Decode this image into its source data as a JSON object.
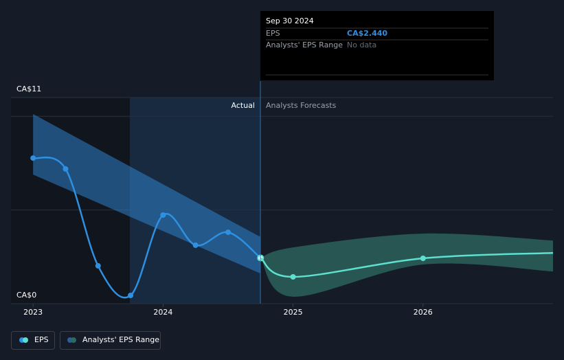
{
  "chart_data": {
    "type": "line",
    "xlim": [
      2022.83,
      2027.0
    ],
    "xticks": [
      2023,
      2024,
      2025,
      2026
    ],
    "ylim": [
      0,
      11
    ],
    "yticks": [
      {
        "value": 0,
        "label": "CA$0"
      },
      {
        "value": 11,
        "label": "CA$11"
      }
    ],
    "gridlines": [
      5,
      10
    ],
    "divider_labels": {
      "left": "Actual",
      "right": "Analysts Forecasts"
    },
    "series": [
      {
        "name": "EPS",
        "color": "#2f8fe0",
        "x": [
          2023.0,
          2023.25,
          2023.5,
          2023.75,
          2024.0,
          2024.25,
          2024.5,
          2024.75
        ],
        "values": [
          7.77,
          7.19,
          2.02,
          0.44,
          4.73,
          3.12,
          3.81,
          2.44
        ]
      },
      {
        "color": "#5ee0d0",
        "x": [
          2024.75,
          2025.0,
          2026.0,
          2027.0
        ],
        "values": [
          2.44,
          1.43,
          2.42,
          2.71
        ]
      }
    ],
    "past_range": {
      "color": "#2f7fc8",
      "x": [
        2023.0,
        2024.75
      ],
      "low": [
        6.89,
        1.61
      ],
      "high": [
        10.12,
        3.56
      ]
    },
    "range": {
      "name": "Analysts' EPS Range",
      "color": "#2e6a63",
      "x": [
        2024.75,
        2025.0,
        2026.0,
        2027.0
      ],
      "low": [
        2.44,
        0.37,
        2.09,
        1.72
      ],
      "high": [
        2.44,
        3.0,
        3.74,
        3.37
      ]
    },
    "tooltip": {
      "date": "Sep 30 2024",
      "rows": [
        {
          "label": "EPS",
          "value": "CA$2.440"
        },
        {
          "label": "Analysts' EPS Range",
          "value": "No data"
        }
      ]
    }
  }
}
